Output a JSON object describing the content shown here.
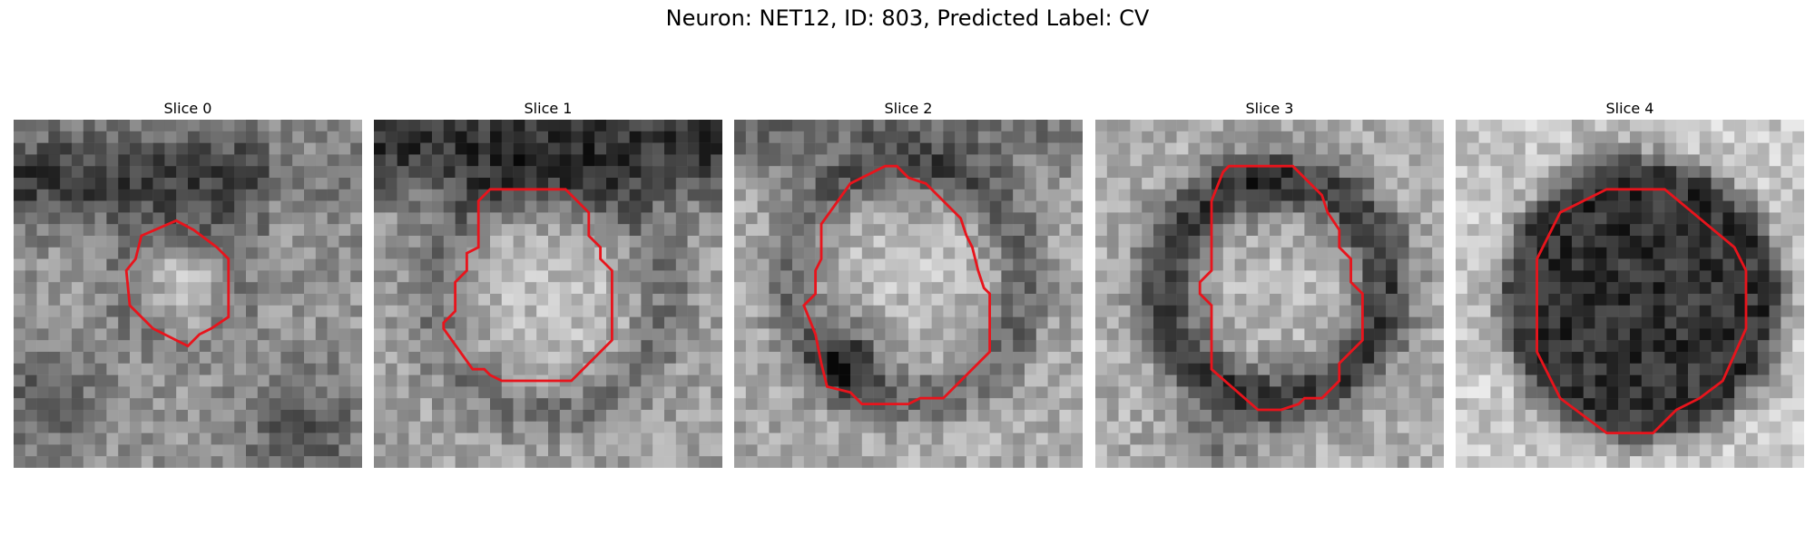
{
  "figure": {
    "title": "Neuron: NET12, ID: 803, Predicted Label: CV"
  },
  "panels": [
    {
      "title": "Slice 0"
    },
    {
      "title": "Slice 1"
    },
    {
      "title": "Slice 2"
    },
    {
      "title": "Slice 3"
    },
    {
      "title": "Slice 4"
    }
  ],
  "colors": {
    "contour": "#e8141c",
    "background": "#ffffff"
  }
}
